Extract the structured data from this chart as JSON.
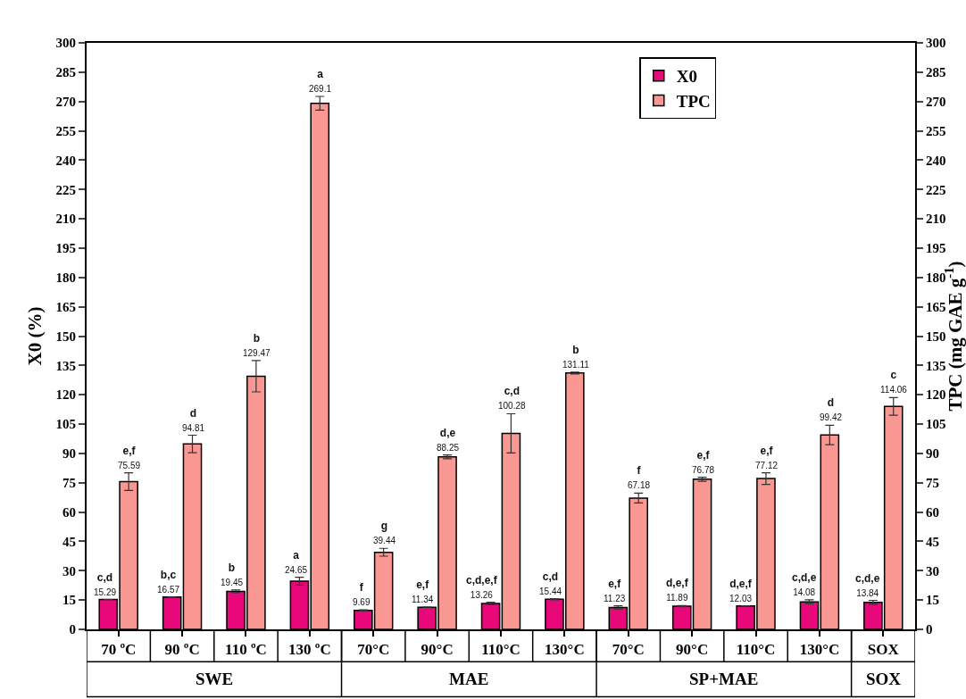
{
  "chart_data": {
    "type": "bar",
    "ylabel": "X0 (%)",
    "y2label": "TPC (mg GAE g$^{-1}$)",
    "categories": [
      "70 ºC",
      "90 ºC",
      "110 ºC",
      "130 ºC",
      "70°C",
      "90°C",
      "110°C",
      "130°C",
      "70°C",
      "90°C",
      "110°C",
      "130°C",
      "SOX"
    ],
    "series": [
      {
        "name": "X0",
        "color": "#e8087a",
        "values": [
          15.29,
          16.57,
          19.45,
          24.65,
          9.69,
          11.34,
          13.26,
          15.44,
          11.23,
          11.89,
          12.03,
          14.08,
          13.84
        ],
        "errors": [
          null,
          null,
          0.7,
          2,
          0.3,
          null,
          0.6,
          0.3,
          0.8,
          0.3,
          null,
          1,
          1
        ],
        "value_labels": [
          "c,d\n15.29",
          "b,c\n16.57",
          "b\n19.45",
          "a\n24.65",
          "f\n9.69",
          "e,f\n11.34",
          "c,d,e,f\n13.26",
          "c,d\n15.44",
          "e,f\n11.23",
          "d,e,f\n11.89",
          "d,e,f\n12.03",
          "c,d,e\n14.08",
          "c,d,e\n13.84"
        ]
      },
      {
        "name": "TPC",
        "color": "#f99892",
        "axis": "y2",
        "values": [
          75.59,
          94.81,
          129.47,
          269.1,
          39.44,
          88.25,
          100.28,
          131.11,
          67.18,
          76.78,
          77.12,
          99.42,
          114.06
        ],
        "errors": [
          4.5,
          4.5,
          8,
          3.5,
          2,
          1,
          10,
          0.5,
          2.5,
          1,
          3,
          5,
          4.5
        ],
        "value_labels": [
          "e,f\n75.59",
          "d\n94.81",
          "b\n129.47",
          "a\n269.1",
          "g\n39.44",
          "d,e\n88.25",
          "c,d\n100.28",
          "b\n131.11",
          "f\n67.18",
          "e,f\n76.78",
          "e,f\n77.12",
          "d\n99.42",
          "c\n114.06"
        ]
      }
    ],
    "ylim": [
      0,
      300
    ],
    "yticks": [
      0,
      15,
      30,
      45,
      60,
      75,
      90,
      105,
      120,
      135,
      150,
      165,
      180,
      195,
      210,
      225,
      240,
      255,
      270,
      285,
      300
    ],
    "y2lim": [
      0,
      300
    ],
    "y2ticks": [
      0,
      15,
      30,
      45,
      60,
      75,
      90,
      105,
      120,
      135,
      150,
      165,
      180,
      195,
      210,
      225,
      240,
      255,
      270,
      285,
      300
    ],
    "annotations": [
      "SWE",
      "MAE",
      "SP+MAE",
      "SOX"
    ],
    "legend": "top right",
    "grid": false
  }
}
